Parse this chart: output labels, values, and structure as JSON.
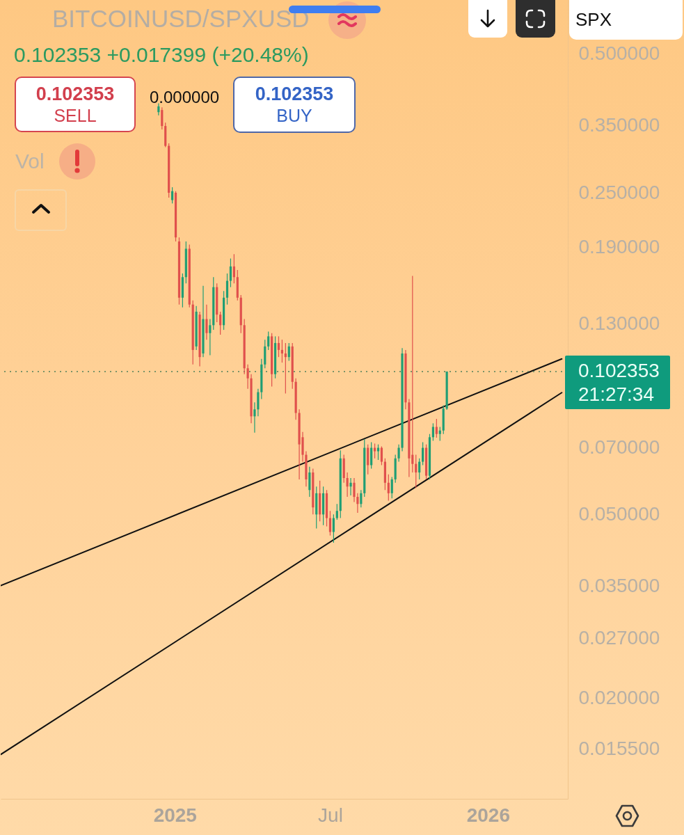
{
  "chart_data": {
    "type": "candlestick",
    "title": "BITCOINUSD/SPXUSD",
    "subtitle": "0.102353 +0.017399 (+20.48%)",
    "x": [
      "2024-12-13",
      "2024-12-17",
      "2024-12-21",
      "2024-12-25",
      "2024-12-29",
      "2025-01-02",
      "2025-01-06",
      "2025-01-10",
      "2025-01-14",
      "2025-01-18",
      "2025-01-22",
      "2025-01-26",
      "2025-01-30",
      "2025-02-03",
      "2025-02-07",
      "2025-02-11",
      "2025-02-15",
      "2025-02-19",
      "2025-02-23",
      "2025-02-27",
      "2025-03-03",
      "2025-03-07",
      "2025-03-11",
      "2025-03-15",
      "2025-03-19",
      "2025-03-23",
      "2025-03-27",
      "2025-03-31",
      "2025-04-04",
      "2025-04-08",
      "2025-04-12",
      "2025-04-16",
      "2025-04-20",
      "2025-04-24",
      "2025-04-28",
      "2025-05-02",
      "2025-05-06",
      "2025-05-10",
      "2025-05-14",
      "2025-05-18",
      "2025-05-22",
      "2025-05-26",
      "2025-05-30",
      "2025-06-03",
      "2025-06-07",
      "2025-06-11",
      "2025-06-15",
      "2025-06-19",
      "2025-06-23",
      "2025-06-27",
      "2025-07-01",
      "2025-07-05",
      "2025-07-09",
      "2025-07-13",
      "2025-07-17",
      "2025-07-21",
      "2025-07-25",
      "2025-07-29",
      "2025-08-02",
      "2025-08-06",
      "2025-08-10",
      "2025-08-14",
      "2025-08-18",
      "2025-08-22",
      "2025-08-26",
      "2025-08-30",
      "2025-09-03",
      "2025-09-07",
      "2025-09-11",
      "2025-09-15",
      "2025-09-19",
      "2025-09-23",
      "2025-09-27",
      "2025-10-01",
      "2025-10-05",
      "2025-10-09",
      "2025-10-13",
      "2025-10-17",
      "2025-10-21",
      "2025-10-25",
      "2025-10-29",
      "2025-11-02",
      "2025-11-06",
      "2025-11-10",
      "2025-11-14"
    ],
    "ohlc": [
      [
        0.374,
        0.391,
        0.368,
        0.385
      ],
      [
        0.378,
        0.383,
        0.343,
        0.349
      ],
      [
        0.349,
        0.355,
        0.314,
        0.316
      ],
      [
        0.316,
        0.32,
        0.244,
        0.25
      ],
      [
        0.241,
        0.257,
        0.237,
        0.252
      ],
      [
        0.25,
        0.252,
        0.196,
        0.2
      ],
      [
        0.196,
        0.2,
        0.143,
        0.148
      ],
      [
        0.148,
        0.167,
        0.141,
        0.164
      ],
      [
        0.164,
        0.196,
        0.159,
        0.189
      ],
      [
        0.189,
        0.193,
        0.141,
        0.143
      ],
      [
        0.143,
        0.146,
        0.106,
        0.114
      ],
      [
        0.116,
        0.142,
        0.114,
        0.138
      ],
      [
        0.136,
        0.138,
        0.105,
        0.11
      ],
      [
        0.112,
        0.157,
        0.11,
        0.133
      ],
      [
        0.133,
        0.143,
        0.12,
        0.124
      ],
      [
        0.124,
        0.133,
        0.111,
        0.129
      ],
      [
        0.129,
        0.164,
        0.126,
        0.156
      ],
      [
        0.156,
        0.159,
        0.131,
        0.136
      ],
      [
        0.136,
        0.138,
        0.123,
        0.129
      ],
      [
        0.129,
        0.153,
        0.126,
        0.148
      ],
      [
        0.148,
        0.167,
        0.143,
        0.161
      ],
      [
        0.161,
        0.18,
        0.156,
        0.173
      ],
      [
        0.173,
        0.184,
        0.159,
        0.164
      ],
      [
        0.164,
        0.17,
        0.146,
        0.148
      ],
      [
        0.148,
        0.15,
        0.124,
        0.129
      ],
      [
        0.129,
        0.133,
        0.101,
        0.104
      ],
      [
        0.104,
        0.106,
        0.0939,
        0.0989
      ],
      [
        0.0989,
        0.101,
        0.079,
        0.0818
      ],
      [
        0.0818,
        0.0877,
        0.0754,
        0.0847
      ],
      [
        0.0847,
        0.0939,
        0.0818,
        0.0923
      ],
      [
        0.0923,
        0.109,
        0.0892,
        0.106
      ],
      [
        0.106,
        0.12,
        0.104,
        0.116
      ],
      [
        0.116,
        0.125,
        0.114,
        0.122
      ],
      [
        0.122,
        0.124,
        0.0949,
        0.101
      ],
      [
        0.101,
        0.122,
        0.0989,
        0.118
      ],
      [
        0.118,
        0.122,
        0.11,
        0.114
      ],
      [
        0.114,
        0.12,
        0.107,
        0.112
      ],
      [
        0.112,
        0.118,
        0.0917,
        0.11
      ],
      [
        0.11,
        0.118,
        0.108,
        0.116
      ],
      [
        0.116,
        0.118,
        0.0939,
        0.0972
      ],
      [
        0.0972,
        0.0989,
        0.0804,
        0.0832
      ],
      [
        0.0832,
        0.0847,
        0.0597,
        0.0711
      ],
      [
        0.0737,
        0.0757,
        0.0652,
        0.0675
      ],
      [
        0.0675,
        0.0687,
        0.0576,
        0.0597
      ],
      [
        0.0566,
        0.0636,
        0.0547,
        0.0618
      ],
      [
        0.0618,
        0.063,
        0.0501,
        0.0519
      ],
      [
        0.0501,
        0.0576,
        0.0467,
        0.0557
      ],
      [
        0.0557,
        0.0593,
        0.0484,
        0.0501
      ],
      [
        0.0501,
        0.0576,
        0.0475,
        0.0557
      ],
      [
        0.0557,
        0.0566,
        0.0472,
        0.0492
      ],
      [
        0.0492,
        0.051,
        0.0451,
        0.0459
      ],
      [
        0.0459,
        0.0501,
        0.0435,
        0.0492
      ],
      [
        0.0492,
        0.0528,
        0.0488,
        0.051
      ],
      [
        0.051,
        0.069,
        0.0492,
        0.0663
      ],
      [
        0.0663,
        0.0675,
        0.0587,
        0.0601
      ],
      [
        0.0601,
        0.0618,
        0.0547,
        0.0576
      ],
      [
        0.0576,
        0.0601,
        0.0551,
        0.0587
      ],
      [
        0.0587,
        0.0601,
        0.0533,
        0.0547
      ],
      [
        0.0547,
        0.0557,
        0.0505,
        0.0528
      ],
      [
        0.0528,
        0.0566,
        0.0519,
        0.0557
      ],
      [
        0.0557,
        0.073,
        0.0547,
        0.0699
      ],
      [
        0.0699,
        0.0711,
        0.0612,
        0.0641
      ],
      [
        0.0641,
        0.0719,
        0.063,
        0.0699
      ],
      [
        0.0699,
        0.0714,
        0.0663,
        0.0687
      ],
      [
        0.0687,
        0.0711,
        0.0658,
        0.0699
      ],
      [
        0.0699,
        0.0704,
        0.0641,
        0.0652
      ],
      [
        0.0652,
        0.0663,
        0.0566,
        0.0587
      ],
      [
        0.0587,
        0.0612,
        0.0537,
        0.0557
      ],
      [
        0.0557,
        0.0604,
        0.0543,
        0.0597
      ],
      [
        0.0597,
        0.0675,
        0.0587,
        0.0663
      ],
      [
        0.0663,
        0.0711,
        0.0652,
        0.0699
      ],
      [
        0.0699,
        0.115,
        0.0687,
        0.112
      ],
      [
        0.112,
        0.114,
        0.0847,
        0.0877
      ],
      [
        0.0877,
        0.0892,
        0.0604,
        0.0663
      ],
      [
        0.0675,
        0.165,
        0.0618,
        0.0645
      ],
      [
        0.0645,
        0.0675,
        0.0572,
        0.0618
      ],
      [
        0.0618,
        0.0663,
        0.0597,
        0.0652
      ],
      [
        0.0652,
        0.0719,
        0.0641,
        0.0699
      ],
      [
        0.0699,
        0.0711,
        0.0597,
        0.0608
      ],
      [
        0.0608,
        0.0749,
        0.0597,
        0.0737
      ],
      [
        0.0737,
        0.079,
        0.0724,
        0.0776
      ],
      [
        0.0776,
        0.0808,
        0.0735,
        0.0749
      ],
      [
        0.0749,
        0.0776,
        0.0724,
        0.0762
      ],
      [
        0.0762,
        0.0864,
        0.0749,
        0.085
      ],
      [
        0.085,
        0.102353,
        0.0845,
        0.102353
      ]
    ],
    "series": [
      {
        "type": "line",
        "x": [
          "2024-06-12",
          "2026-03-28"
        ],
        "values": [
          0.0351,
          0.109
        ],
        "color": "#111111"
      },
      {
        "type": "line",
        "x": [
          "2024-06-12",
          "2026-03-28"
        ],
        "values": [
          0.0151,
          0.0921
        ],
        "color": "#111111"
      }
    ],
    "xlim": [
      "2024-06-12",
      "2026-04-04"
    ],
    "xticks": [
      {
        "value": "2025-01-01",
        "label": "2025"
      },
      {
        "value": "2025-07-01",
        "label": "Jul"
      },
      {
        "value": "2026-01-01",
        "label": "2026"
      }
    ],
    "ylim": [
      0.0121,
      0.655
    ],
    "yticks": [
      {
        "value": 0.5,
        "label": "0.500000"
      },
      {
        "value": 0.35,
        "label": "0.350000"
      },
      {
        "value": 0.25,
        "label": "0.250000"
      },
      {
        "value": 0.19,
        "label": "0.190000"
      },
      {
        "value": 0.13,
        "label": "0.130000"
      },
      {
        "value": 0.07,
        "label": "0.070000"
      },
      {
        "value": 0.05,
        "label": "0.050000"
      },
      {
        "value": 0.035,
        "label": "0.035000"
      },
      {
        "value": 0.027,
        "label": "0.027000"
      },
      {
        "value": 0.02,
        "label": "0.020000"
      },
      {
        "value": 0.0155,
        "label": "0.015500"
      }
    ],
    "log": true,
    "ref_lines": [
      {
        "axis": "y",
        "value": 0.102353,
        "label": "0.102353",
        "color": "#4f7f5a",
        "line_style": "dotted"
      }
    ],
    "annotations": [
      "0.102353",
      "SELL",
      "0.000000",
      "0.102353",
      "BUY",
      "Vol",
      "SPX",
      "21:27:34"
    ]
  }
}
